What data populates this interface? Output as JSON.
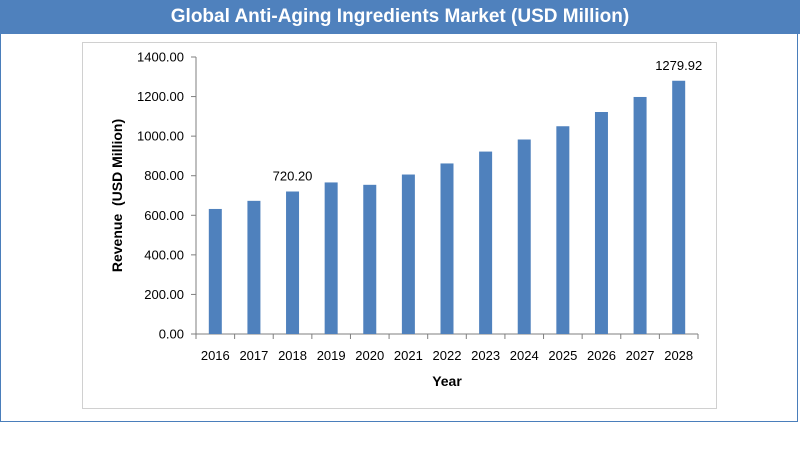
{
  "header": {
    "title": "Global Anti-Aging Ingredients Market (USD Million)"
  },
  "colors": {
    "bar": "#4f81bd",
    "header_bg": "#4f81bd",
    "axis": "#7f7f7f"
  },
  "chart_data": {
    "type": "bar",
    "title": "Global Anti-Aging Ingredients Market (USD Million)",
    "xlabel": "Year",
    "ylabel": "Revenue  (USD Million)",
    "categories": [
      "2016",
      "2017",
      "2018",
      "2019",
      "2020",
      "2021",
      "2022",
      "2023",
      "2024",
      "2025",
      "2026",
      "2027",
      "2028"
    ],
    "values": [
      632,
      673,
      720.2,
      766,
      754,
      806,
      862,
      922,
      983,
      1050,
      1122,
      1198,
      1279.92
    ],
    "ylim": [
      0,
      1400
    ],
    "yticks": [
      "0.00",
      "200.00",
      "400.00",
      "600.00",
      "800.00",
      "1000.00",
      "1200.00",
      "1400.00"
    ],
    "data_labels": [
      {
        "index": 2,
        "text": "720.20"
      },
      {
        "index": 12,
        "text": "1279.92"
      }
    ],
    "grid": false,
    "legend": "none"
  }
}
